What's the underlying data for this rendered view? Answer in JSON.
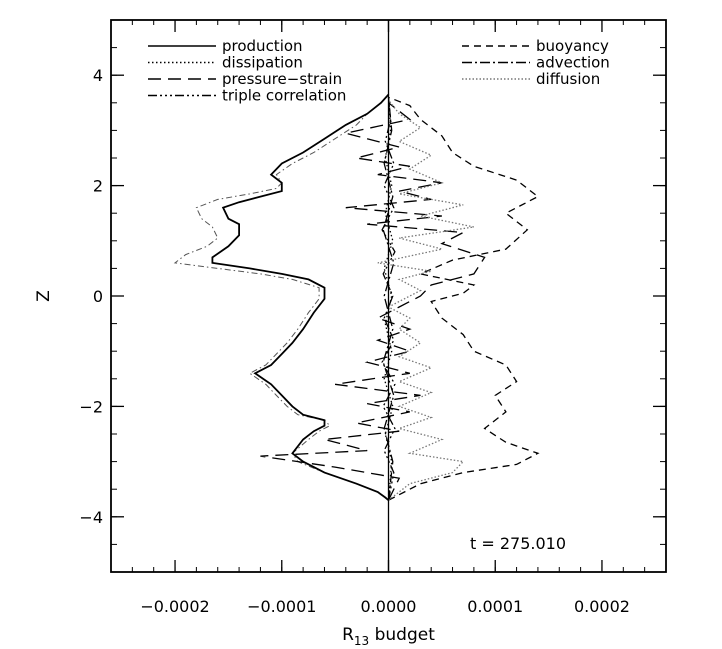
{
  "chart_data": {
    "type": "line",
    "xlabel": "R",
    "xlabel_sub": "13",
    "xlabel_suffix": " budget",
    "ylabel": "Z",
    "xlim": [
      -0.00026,
      0.00026
    ],
    "ylim": [
      -5,
      5
    ],
    "xticks": [
      -0.0002,
      -0.0001,
      0.0,
      0.0001,
      0.0002
    ],
    "xtick_labels": [
      "−0.0002",
      "−0.0001",
      "0.0000",
      "0.0001",
      "0.0002"
    ],
    "yticks": [
      -4,
      -2,
      0,
      2,
      4
    ],
    "ytick_labels": [
      "−4",
      "−2",
      "0",
      "2",
      "4"
    ],
    "grid": false,
    "annotation": "t = 275.010",
    "legend_left": [
      "production",
      "dissipation",
      "pressure−strain",
      "triple correlation"
    ],
    "legend_right": [
      "buoyancy",
      "advection",
      "diffusion"
    ],
    "series": [
      {
        "name": "production",
        "color": "#000000",
        "dash": "",
        "width": 1.8,
        "points": [
          [
            0,
            -3.7
          ],
          [
            -3e-06,
            -3.65
          ],
          [
            -1e-05,
            -3.55
          ],
          [
            -3e-05,
            -3.4
          ],
          [
            -6e-05,
            -3.2
          ],
          [
            -8e-05,
            -3.0
          ],
          [
            -9e-05,
            -2.85
          ],
          [
            -8e-05,
            -2.6
          ],
          [
            -7e-05,
            -2.45
          ],
          [
            -6e-05,
            -2.35
          ],
          [
            -6e-05,
            -2.25
          ],
          [
            -8e-05,
            -2.15
          ],
          [
            -9e-05,
            -2.0
          ],
          [
            -0.0001,
            -1.8
          ],
          [
            -0.00011,
            -1.6
          ],
          [
            -0.000125,
            -1.4
          ],
          [
            -0.00011,
            -1.25
          ],
          [
            -0.0001,
            -1.05
          ],
          [
            -9e-05,
            -0.85
          ],
          [
            -8e-05,
            -0.6
          ],
          [
            -7e-05,
            -0.3
          ],
          [
            -6e-05,
            -0.05
          ],
          [
            -6e-05,
            0.15
          ],
          [
            -7.5e-05,
            0.3
          ],
          [
            -0.0001,
            0.4
          ],
          [
            -0.00013,
            0.5
          ],
          [
            -0.000165,
            0.6
          ],
          [
            -0.000165,
            0.7
          ],
          [
            -0.00015,
            0.9
          ],
          [
            -0.00014,
            1.1
          ],
          [
            -0.00014,
            1.3
          ],
          [
            -0.00015,
            1.4
          ],
          [
            -0.000155,
            1.6
          ],
          [
            -0.00014,
            1.7
          ],
          [
            -0.00012,
            1.8
          ],
          [
            -0.0001,
            1.9
          ],
          [
            -0.0001,
            2.05
          ],
          [
            -0.00011,
            2.2
          ],
          [
            -0.0001,
            2.4
          ],
          [
            -8e-05,
            2.6
          ],
          [
            -6e-05,
            2.85
          ],
          [
            -4e-05,
            3.1
          ],
          [
            -2e-05,
            3.3
          ],
          [
            -7e-06,
            3.5
          ],
          [
            0,
            3.65
          ]
        ]
      },
      {
        "name": "dissipation",
        "color": "#000000",
        "dash": "1.5,2.5",
        "width": 1.3,
        "points": [
          [
            0,
            -3.7
          ],
          [
            3e-06,
            -3.0
          ],
          [
            -3e-06,
            -2.5
          ],
          [
            4e-06,
            -2.0
          ],
          [
            -4e-06,
            -1.5
          ],
          [
            3e-06,
            -1.0
          ],
          [
            -3e-06,
            -0.5
          ],
          [
            3e-06,
            0.0
          ],
          [
            -4e-06,
            0.5
          ],
          [
            4e-06,
            1.0
          ],
          [
            -3e-06,
            1.5
          ],
          [
            3e-06,
            2.0
          ],
          [
            -3e-06,
            2.5
          ],
          [
            2e-06,
            3.0
          ],
          [
            0,
            3.65
          ]
        ]
      },
      {
        "name": "pressure−strain",
        "color": "#000000",
        "dash": "13,7",
        "width": 1.3,
        "points": [
          [
            0,
            -3.7
          ],
          [
            1e-05,
            -3.3
          ],
          [
            -5e-05,
            -3.1
          ],
          [
            -0.00012,
            -2.9
          ],
          [
            -2e-05,
            -2.8
          ],
          [
            -6e-05,
            -2.6
          ],
          [
            1e-05,
            -2.45
          ],
          [
            -3e-05,
            -2.3
          ],
          [
            2e-05,
            -2.1
          ],
          [
            -2e-05,
            -1.95
          ],
          [
            3e-05,
            -1.8
          ],
          [
            -5e-05,
            -1.6
          ],
          [
            2e-05,
            -1.4
          ],
          [
            -2e-05,
            -1.2
          ],
          [
            2e-05,
            -1.0
          ],
          [
            -1e-05,
            -0.8
          ],
          [
            2e-05,
            -0.6
          ],
          [
            -1e-05,
            -0.4
          ],
          [
            1e-05,
            -0.2
          ],
          [
            3e-05,
            0.0
          ],
          [
            4e-05,
            0.2
          ],
          [
            8e-05,
            0.4
          ],
          [
            9e-05,
            0.7
          ],
          [
            5e-05,
            0.95
          ],
          [
            7e-05,
            1.15
          ],
          [
            -2e-05,
            1.3
          ],
          [
            5e-05,
            1.45
          ],
          [
            -4e-05,
            1.6
          ],
          [
            4e-05,
            1.75
          ],
          [
            1e-05,
            1.9
          ],
          [
            5e-05,
            2.05
          ],
          [
            -1e-05,
            2.2
          ],
          [
            2e-05,
            2.35
          ],
          [
            -3e-05,
            2.5
          ],
          [
            1e-05,
            2.7
          ],
          [
            -4e-05,
            2.95
          ],
          [
            2e-05,
            3.2
          ],
          [
            0,
            3.5
          ]
        ]
      },
      {
        "name": "triple correlation",
        "color": "#000000",
        "dash": "9,3,2,3,2,3,2,3",
        "width": 1.3,
        "points": [
          [
            0,
            -3.7
          ],
          [
            5e-06,
            -3.2
          ],
          [
            -4e-06,
            -2.8
          ],
          [
            6e-06,
            -2.4
          ],
          [
            -5e-06,
            -2.0
          ],
          [
            6e-06,
            -1.6
          ],
          [
            -6e-06,
            -1.2
          ],
          [
            5e-06,
            -0.8
          ],
          [
            -4e-06,
            -0.4
          ],
          [
            4e-06,
            0.0
          ],
          [
            -5e-06,
            0.4
          ],
          [
            6e-06,
            0.8
          ],
          [
            -6e-06,
            1.2
          ],
          [
            5e-06,
            1.6
          ],
          [
            -4e-06,
            2.0
          ],
          [
            5e-06,
            2.4
          ],
          [
            -3e-06,
            2.8
          ],
          [
            2e-06,
            3.2
          ],
          [
            0,
            3.6
          ]
        ]
      },
      {
        "name": "buoyancy",
        "color": "#000000",
        "dash": "7,5",
        "width": 1.3,
        "points": [
          [
            0,
            -3.7
          ],
          [
            3e-05,
            -3.4
          ],
          [
            7e-05,
            -3.2
          ],
          [
            0.00012,
            -3.05
          ],
          [
            0.00014,
            -2.85
          ],
          [
            0.00011,
            -2.65
          ],
          [
            9e-05,
            -2.4
          ],
          [
            0.00011,
            -2.1
          ],
          [
            0.0001,
            -1.8
          ],
          [
            0.00012,
            -1.55
          ],
          [
            0.00011,
            -1.25
          ],
          [
            8e-05,
            -1.0
          ],
          [
            7e-05,
            -0.7
          ],
          [
            5e-05,
            -0.4
          ],
          [
            4e-05,
            -0.1
          ],
          [
            7e-05,
            0.05
          ],
          [
            8e-05,
            0.2
          ],
          [
            3e-05,
            0.4
          ],
          [
            6e-05,
            0.65
          ],
          [
            0.00011,
            0.85
          ],
          [
            0.00013,
            1.2
          ],
          [
            0.00011,
            1.5
          ],
          [
            0.00014,
            1.8
          ],
          [
            0.00012,
            2.1
          ],
          [
            8e-05,
            2.35
          ],
          [
            6e-05,
            2.6
          ],
          [
            5e-05,
            2.9
          ],
          [
            3e-05,
            3.2
          ],
          [
            2e-05,
            3.45
          ],
          [
            0,
            3.6
          ]
        ]
      },
      {
        "name": "advection",
        "color": "#000000",
        "dash": "10,3,2,3",
        "width": 1.3,
        "points": [
          [
            0,
            -3.7
          ],
          [
            4e-06,
            -3.0
          ],
          [
            -4e-06,
            -2.4
          ],
          [
            5e-06,
            -1.8
          ],
          [
            -5e-06,
            -1.2
          ],
          [
            4e-06,
            -0.6
          ],
          [
            -4e-06,
            0.0
          ],
          [
            5e-06,
            0.6
          ],
          [
            -5e-06,
            1.2
          ],
          [
            4e-06,
            1.8
          ],
          [
            -4e-06,
            2.4
          ],
          [
            3e-06,
            3.0
          ],
          [
            0,
            3.6
          ]
        ]
      },
      {
        "name": "diffusion",
        "color": "#777777",
        "dash": "1.5,2",
        "width": 1.3,
        "points": [
          [
            0,
            -3.7
          ],
          [
            2e-05,
            -3.4
          ],
          [
            6e-05,
            -3.2
          ],
          [
            7e-05,
            -3.0
          ],
          [
            2e-05,
            -2.85
          ],
          [
            5e-05,
            -2.6
          ],
          [
            1e-05,
            -2.4
          ],
          [
            4e-05,
            -2.2
          ],
          [
            1e-05,
            -2.0
          ],
          [
            4e-05,
            -1.75
          ],
          [
            1e-05,
            -1.55
          ],
          [
            4e-05,
            -1.3
          ],
          [
            1e-05,
            -1.1
          ],
          [
            3e-05,
            -0.85
          ],
          [
            1e-05,
            -0.6
          ],
          [
            2e-05,
            -0.4
          ],
          [
            0.0,
            -0.2
          ],
          [
            3e-05,
            0.1
          ],
          [
            1e-05,
            0.3
          ],
          [
            4e-05,
            0.45
          ],
          [
            -1e-05,
            0.6
          ],
          [
            5e-05,
            0.85
          ],
          [
            1e-05,
            1.05
          ],
          [
            8e-05,
            1.25
          ],
          [
            3e-05,
            1.45
          ],
          [
            7e-05,
            1.65
          ],
          [
            1e-05,
            1.85
          ],
          [
            5e-05,
            2.05
          ],
          [
            2e-05,
            2.3
          ],
          [
            4e-05,
            2.55
          ],
          [
            1e-05,
            2.8
          ],
          [
            3e-05,
            3.05
          ],
          [
            1e-05,
            3.3
          ],
          [
            0,
            3.55
          ]
        ]
      }
    ],
    "thin_series": [
      {
        "name": "production",
        "color": "#555555",
        "dash": "6,3,1.5,3",
        "width": 1.0,
        "points": [
          [
            0,
            -3.7
          ],
          [
            -3e-06,
            -3.65
          ],
          [
            -1e-05,
            -3.55
          ],
          [
            -3e-05,
            -3.4
          ],
          [
            -6e-05,
            -3.2
          ],
          [
            -8.5e-05,
            -3.0
          ],
          [
            -9e-05,
            -2.85
          ],
          [
            -7.5e-05,
            -2.6
          ],
          [
            -6.5e-05,
            -2.45
          ],
          [
            -5.5e-05,
            -2.35
          ],
          [
            -6e-05,
            -2.25
          ],
          [
            -8.5e-05,
            -2.15
          ],
          [
            -9.5e-05,
            -2.0
          ],
          [
            -0.000105,
            -1.8
          ],
          [
            -0.000115,
            -1.6
          ],
          [
            -0.00013,
            -1.4
          ],
          [
            -0.000115,
            -1.25
          ],
          [
            -0.000105,
            -1.05
          ],
          [
            -9.5e-05,
            -0.85
          ],
          [
            -8.5e-05,
            -0.6
          ],
          [
            -7.5e-05,
            -0.3
          ],
          [
            -6.5e-05,
            -0.05
          ],
          [
            -6.5e-05,
            0.15
          ],
          [
            -9e-05,
            0.3
          ],
          [
            -0.00012,
            0.4
          ],
          [
            -0.00016,
            0.5
          ],
          [
            -0.0002,
            0.6
          ],
          [
            -0.00019,
            0.75
          ],
          [
            -0.00017,
            0.9
          ],
          [
            -0.00016,
            1.05
          ],
          [
            -0.000165,
            1.25
          ],
          [
            -0.000175,
            1.4
          ],
          [
            -0.00018,
            1.6
          ],
          [
            -0.00016,
            1.75
          ],
          [
            -0.00013,
            1.85
          ],
          [
            -0.000105,
            1.95
          ],
          [
            -0.0001,
            2.05
          ],
          [
            -0.000105,
            2.2
          ],
          [
            -9e-05,
            2.4
          ],
          [
            -7e-05,
            2.6
          ],
          [
            -5e-05,
            2.85
          ],
          [
            -3e-05,
            3.1
          ],
          [
            -2e-05,
            3.3
          ],
          [
            -7e-06,
            3.5
          ],
          [
            0,
            3.65
          ]
        ]
      }
    ]
  }
}
